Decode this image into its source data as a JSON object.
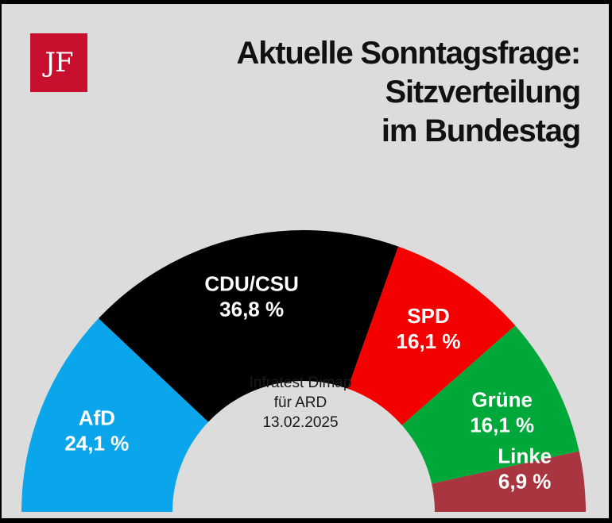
{
  "logo": {
    "text": "JF"
  },
  "title": {
    "line1": "Aktuelle Sonntagsfrage:",
    "line2": "Sitzverteilung",
    "line3": "im Bundestag"
  },
  "source": {
    "line1": "Infratest Dimap",
    "line2": "für ARD",
    "line3": "13.02.2025"
  },
  "chart_data": {
    "type": "pie",
    "variant": "semicircle-parliament",
    "series": [
      {
        "name": "AfD",
        "value": 24.1,
        "label": "24,1 %",
        "color": "#0aa5ea"
      },
      {
        "name": "CDU/CSU",
        "value": 36.8,
        "label": "36,8 %",
        "color": "#000000"
      },
      {
        "name": "SPD",
        "value": 16.1,
        "label": "16,1 %",
        "color": "#f40000"
      },
      {
        "name": "Grüne",
        "value": 16.1,
        "label": "16,1 %",
        "color": "#00a83a"
      },
      {
        "name": "Linke",
        "value": 6.9,
        "label": "6,9 %",
        "color": "#a8353f"
      }
    ]
  }
}
